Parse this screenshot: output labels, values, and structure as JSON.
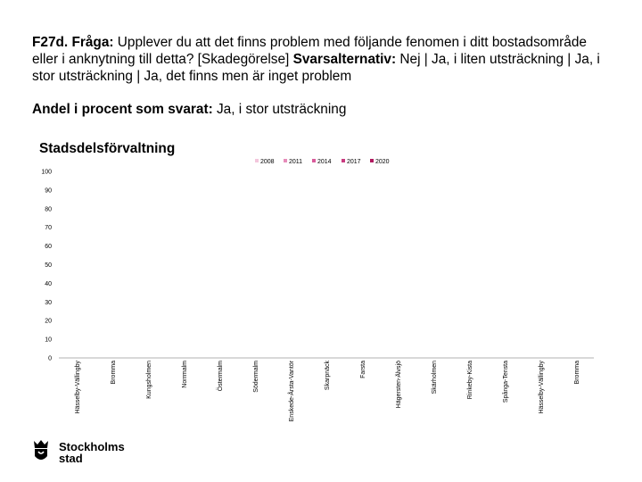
{
  "header": {
    "title_prefix": "F27d. Fråga:",
    "title_text": "Upplever du att det finns problem med följande fenomen i ditt bostadsområde eller i anknytning till detta? [Skadegörelse]",
    "alt_prefix": "Svarsalternativ:",
    "alt_text": "Nej | Ja, i liten utsträckning | Ja, i stor utsträckning | Ja, det finns men är inget problem",
    "sub_prefix": "Andel i procent som svarat:",
    "sub_text": "Ja, i stor utsträckning"
  },
  "logo": {
    "line1": "Stockholms",
    "line2": "stad",
    "icon": "crown-shield-icon"
  },
  "colors": {
    "series": [
      "#f3c6dc",
      "#e78cba",
      "#d95b9b",
      "#c93b80",
      "#b0195f"
    ]
  },
  "chart_data": {
    "type": "bar",
    "title": "Stadsdelsförvaltning",
    "xlabel": "",
    "ylabel": "",
    "ylim": [
      0,
      100
    ],
    "yticks": [
      0,
      10,
      20,
      30,
      40,
      50,
      60,
      70,
      80,
      90,
      100
    ],
    "grid": false,
    "legend_position": "top",
    "categories": [
      "Hässelby-Vällingby",
      "Bromma",
      "Kungsholmen",
      "Norrmalm",
      "Östermalm",
      "Södermalm",
      "Enskede-Årsta-Vantör",
      "Skarpnäck",
      "Farsta",
      "Hägersten-Älvsjö",
      "Skärholmen",
      "Rinkeby-Kista",
      "Spånga-Tensta",
      "Hässelby-Vällingby",
      "Bromma"
    ],
    "series": [
      {
        "name": "2008",
        "values": [
          null,
          null,
          null,
          null,
          null,
          null,
          null,
          null,
          null,
          null,
          null,
          null,
          null,
          null,
          null
        ]
      },
      {
        "name": "2011",
        "values": [
          null,
          null,
          null,
          null,
          null,
          null,
          null,
          null,
          null,
          null,
          null,
          null,
          null,
          null,
          null
        ]
      },
      {
        "name": "2014",
        "values": [
          null,
          null,
          null,
          null,
          null,
          null,
          null,
          null,
          null,
          null,
          null,
          null,
          null,
          null,
          null
        ]
      },
      {
        "name": "2017",
        "values": [
          null,
          null,
          null,
          null,
          null,
          null,
          null,
          null,
          null,
          null,
          null,
          null,
          null,
          null,
          null
        ]
      },
      {
        "name": "2020",
        "values": [
          null,
          null,
          null,
          null,
          null,
          null,
          null,
          null,
          null,
          null,
          null,
          null,
          null,
          null,
          null
        ]
      }
    ]
  }
}
